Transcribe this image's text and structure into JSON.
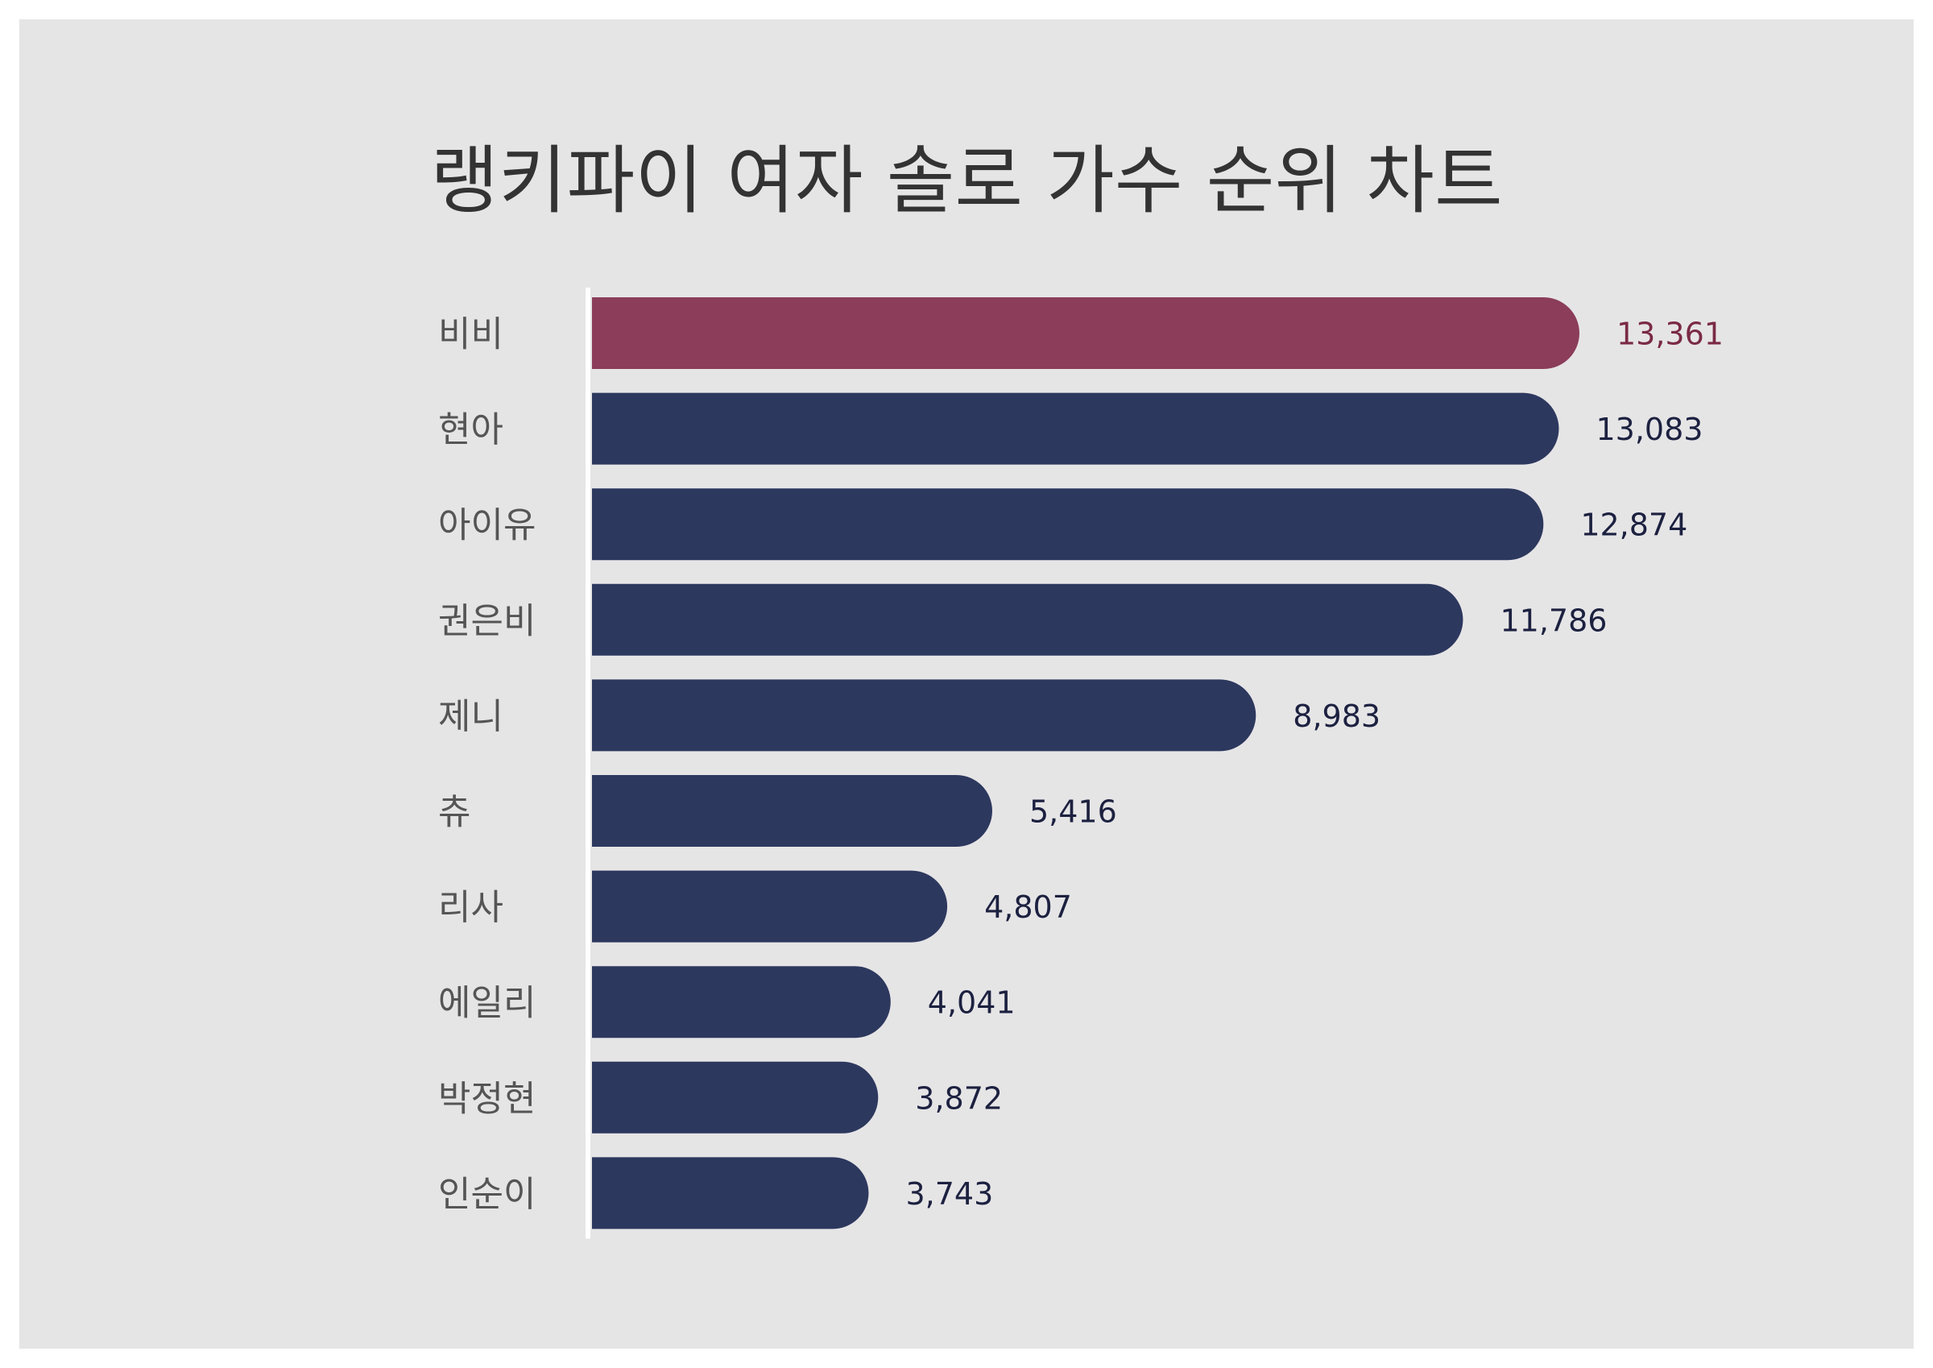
{
  "chart_data": {
    "type": "bar",
    "orientation": "horizontal",
    "title": "랭키파이 여자 솔로 가수 순위 차트",
    "categories": [
      "비비",
      "현아",
      "아이유",
      "권은비",
      "제니",
      "츄",
      "리사",
      "에일리",
      "박정현",
      "인순이"
    ],
    "values": [
      13361,
      13083,
      12874,
      11786,
      8983,
      5416,
      4807,
      4041,
      3872,
      3743
    ],
    "value_labels": [
      "13,361",
      "13,083",
      "12,874",
      "11,786",
      "8,983",
      "5,416",
      "4,807",
      "4,041",
      "3,872",
      "3,743"
    ],
    "highlight_index": 0,
    "xlim": [
      0,
      13361
    ],
    "grid": false,
    "legend": "none"
  },
  "colors": {
    "background": "#e6e5e6",
    "highlight_bar": "#8b3d5a",
    "highlight_value": "#7a2a45",
    "bar": "#2d385e",
    "value": "#1c2140",
    "category": "#555555",
    "title": "#333333",
    "axis": "#ffffff"
  }
}
